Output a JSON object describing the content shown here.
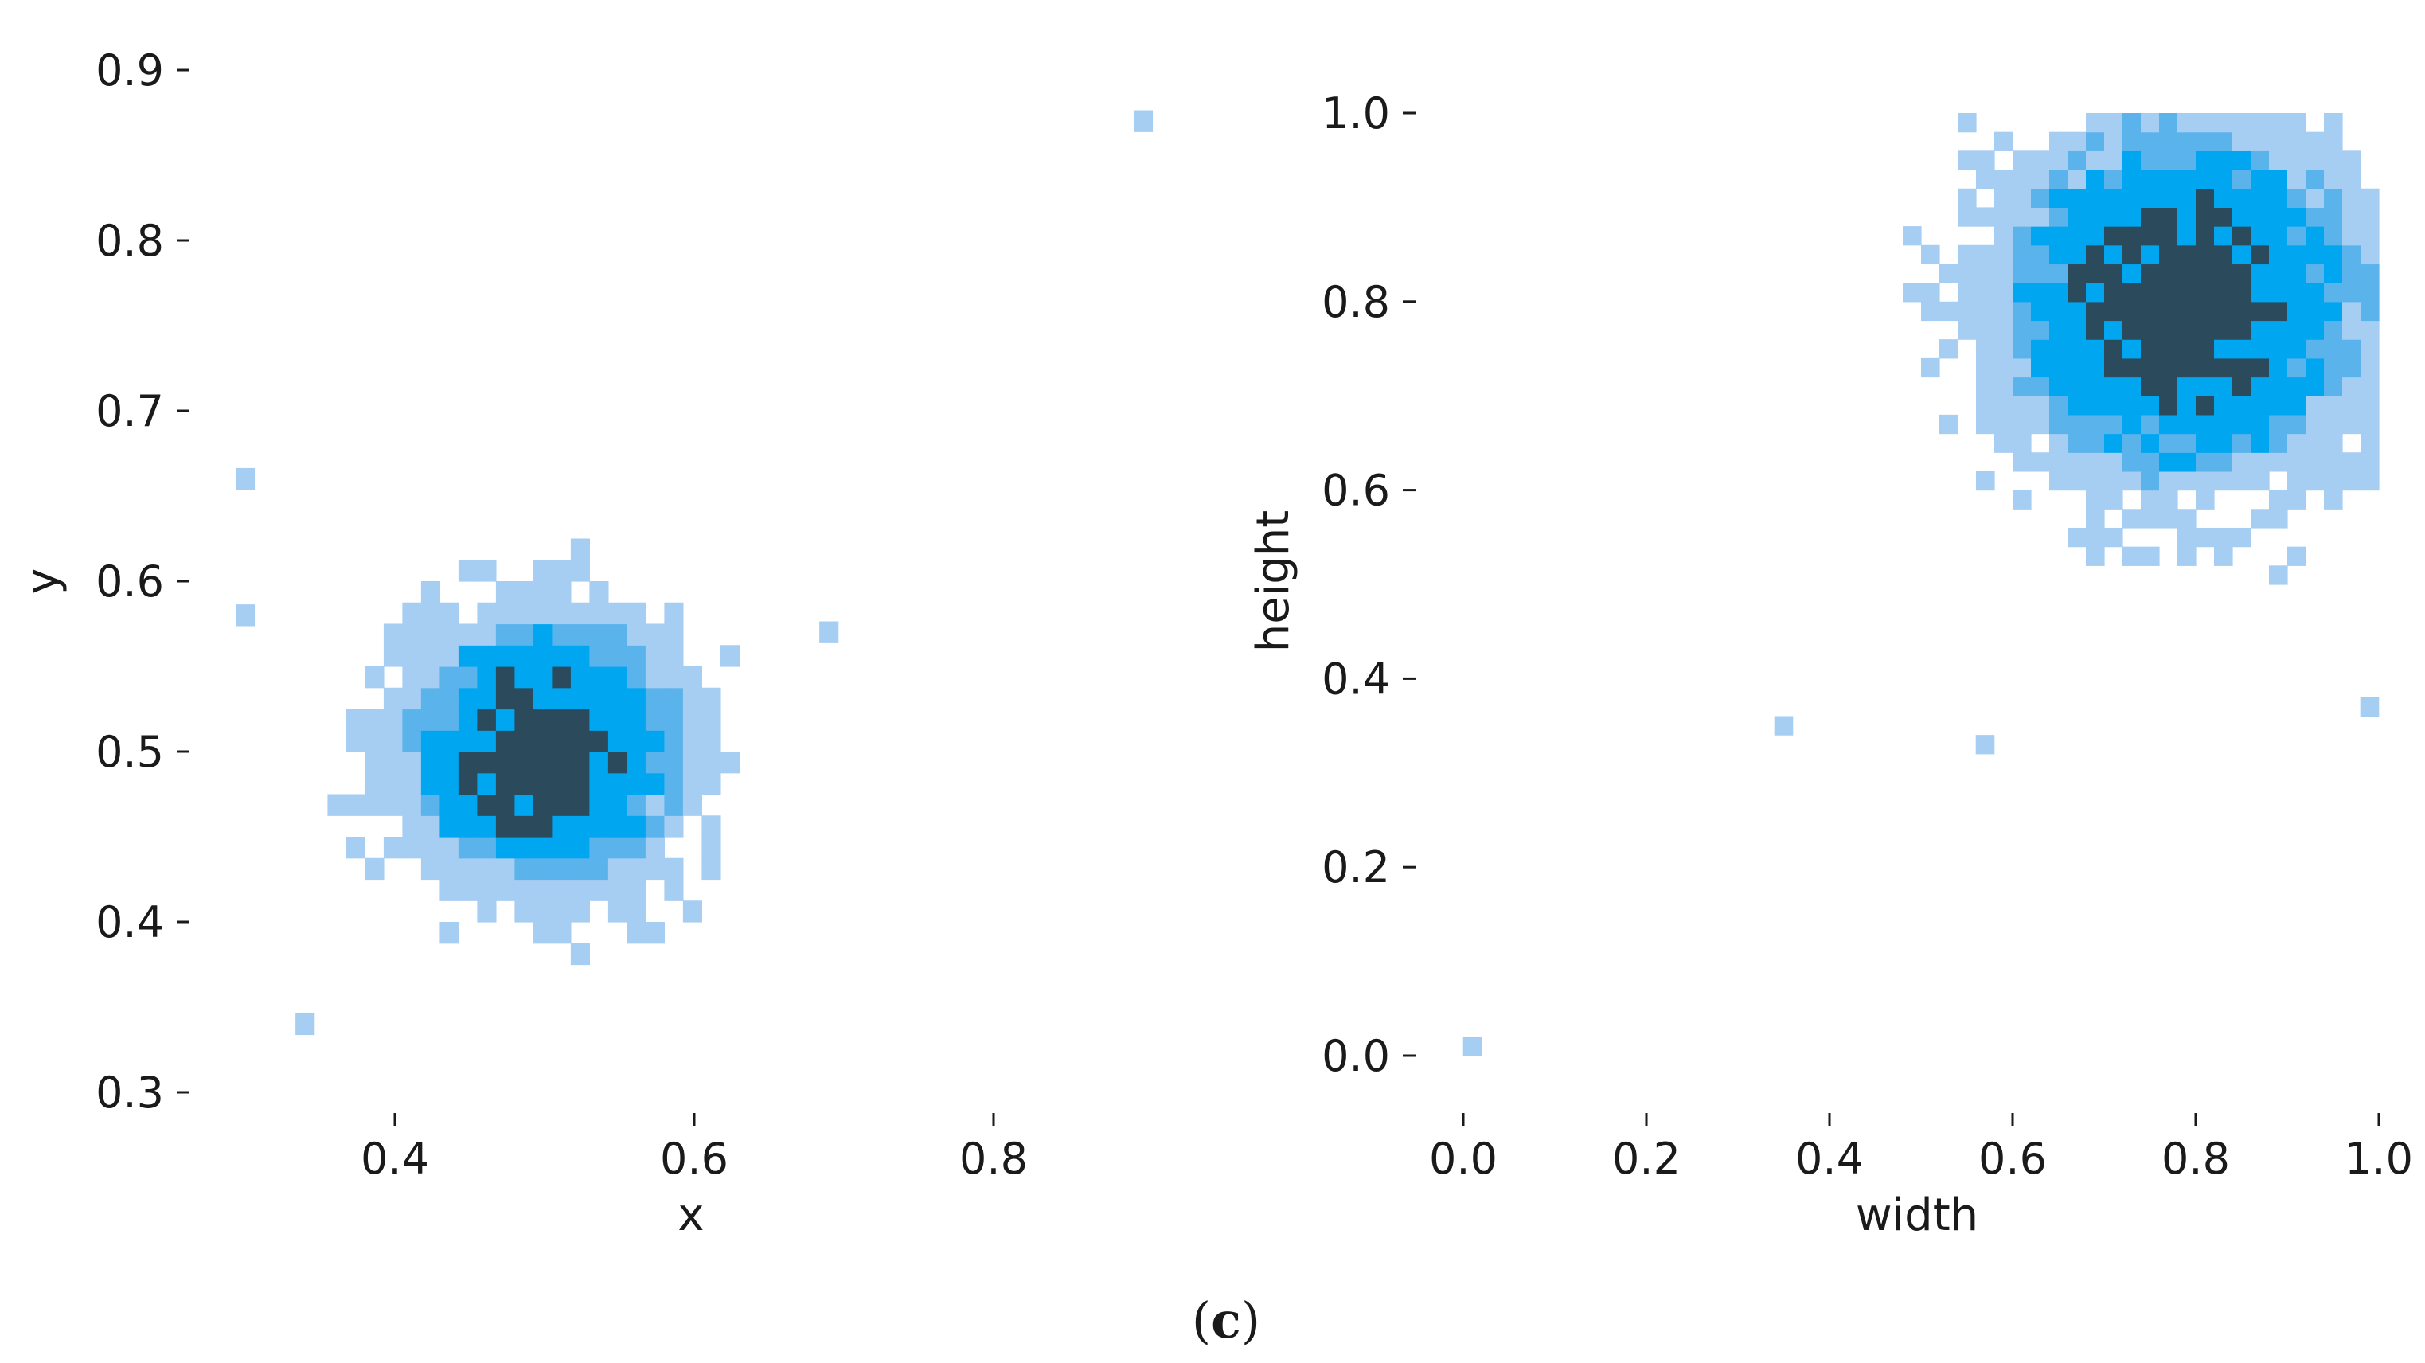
{
  "caption": {
    "open": "(",
    "letter": "c",
    "close": ")"
  },
  "chart_data": [
    {
      "type": "heatmap",
      "xlabel": "x",
      "ylabel": "y",
      "xticks": [
        "0.4",
        "0.6",
        "0.8"
      ],
      "xtick_values": [
        0.4,
        0.6,
        0.8
      ],
      "yticks": [
        "0.3",
        "0.4",
        "0.5",
        "0.6",
        "0.7",
        "0.8",
        "0.9"
      ],
      "ytick_values": [
        0.3,
        0.4,
        0.5,
        0.6,
        0.7,
        0.8,
        0.9
      ],
      "xlim": [
        0.28,
        0.9
      ],
      "ylim": [
        0.3,
        0.9
      ],
      "bin_width": 0.0125,
      "grid": false,
      "distribution": {
        "kind": "2d-histogram-gaussian",
        "center": [
          0.5,
          0.5
        ],
        "std": [
          0.06,
          0.05
        ]
      },
      "outliers": [
        [
          0.9,
          0.87
        ],
        [
          0.3,
          0.66
        ],
        [
          0.3,
          0.58
        ],
        [
          0.34,
          0.34
        ],
        [
          0.69,
          0.57
        ]
      ],
      "colors": {
        "low": "#a6cdf2",
        "mid": "#00a6f0",
        "high": "#2b4a5c"
      }
    },
    {
      "type": "heatmap",
      "xlabel": "width",
      "ylabel": "height",
      "xticks": [
        "0.0",
        "0.2",
        "0.4",
        "0.6",
        "0.8",
        "1.0"
      ],
      "xtick_values": [
        0.0,
        0.2,
        0.4,
        0.6,
        0.8,
        1.0
      ],
      "yticks": [
        "0.0",
        "0.2",
        "0.4",
        "0.6",
        "0.8",
        "1.0"
      ],
      "ytick_values": [
        0.0,
        0.2,
        0.4,
        0.6,
        0.8,
        1.0
      ],
      "xlim": [
        0.0,
        1.0
      ],
      "ylim": [
        0.0,
        1.0
      ],
      "bin_width": 0.02,
      "grid": false,
      "distribution": {
        "kind": "2d-histogram-gaussian",
        "center": [
          0.78,
          0.8
        ],
        "std": [
          0.12,
          0.12
        ],
        "clipped_at": 1.0
      },
      "outliers": [
        [
          0.01,
          0.01
        ],
        [
          0.35,
          0.35
        ],
        [
          0.57,
          0.33
        ],
        [
          0.99,
          0.37
        ]
      ],
      "colors": {
        "low": "#a6cdf2",
        "mid": "#00a6f0",
        "high": "#2b4a5c"
      }
    }
  ]
}
